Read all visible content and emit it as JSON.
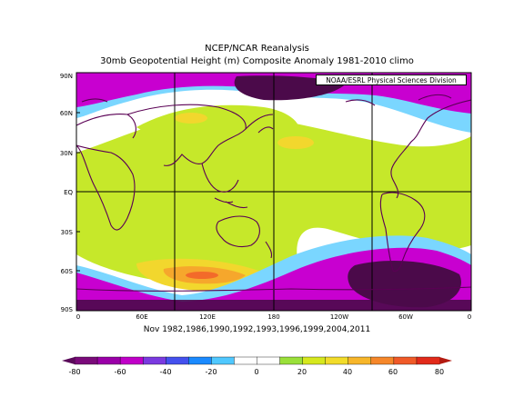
{
  "title": "NCEP/NCAR Reanalysis",
  "subtitle": "30mb Geopotential Height (m) Composite Anomaly 1981-2010 climo",
  "credit": "NOAA/ESRL Physical Sciences Division",
  "caption": "Nov 1982,1986,1990,1992,1993,1996,1999,2004,2011",
  "lat_labels": [
    "90N",
    "60N",
    "30N",
    "EQ",
    "30S",
    "60S",
    "90S"
  ],
  "lon_labels": [
    "0",
    "60E",
    "120E",
    "180",
    "120W",
    "60W",
    "0"
  ],
  "colorbar": {
    "tick_labels": [
      "-80",
      "-60",
      "-40",
      "-20",
      "0",
      "20",
      "40",
      "60",
      "80"
    ],
    "colors": [
      "#7a0a7a",
      "#9a00a8",
      "#c000c8",
      "#7a3ae0",
      "#4450ee",
      "#1a8aff",
      "#50c8ff",
      "#ffffff",
      "#ffffff",
      "#9ae03a",
      "#d6e81e",
      "#f2dc2a",
      "#f7b62a",
      "#f6872a",
      "#f05a28",
      "#e22a1a"
    ]
  },
  "colors": {
    "pos_low": "#c6e82a",
    "pos_mid": "#f2d72d",
    "pos_high": "#f6a72c",
    "neg_low": "#7ad6ff",
    "neg_mid": "#c800d0",
    "neg_high": "#4b0a4a",
    "coast": "#5a0054"
  }
}
